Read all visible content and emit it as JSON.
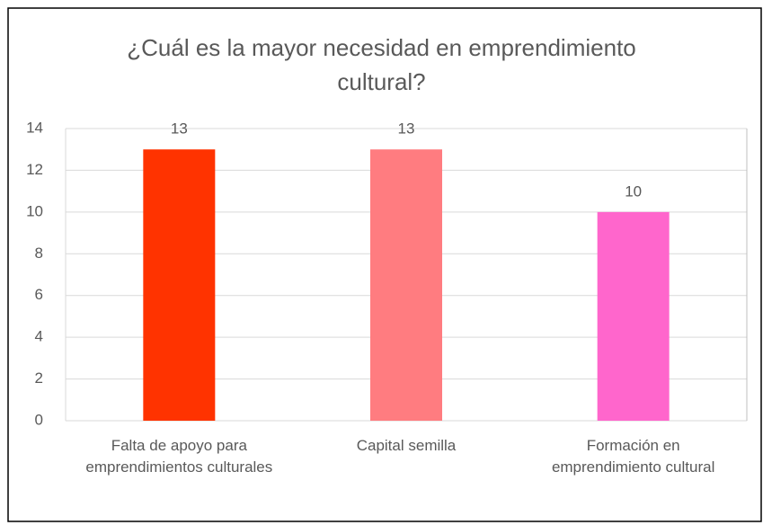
{
  "chart_data": {
    "type": "bar",
    "title": "¿Cuál es la mayor necesidad en emprendimiento cultural?",
    "categories": [
      "Falta de apoyo para emprendimientos culturales",
      "Capital semilla",
      "Formación en emprendimiento cultural"
    ],
    "values": [
      13,
      13,
      10
    ],
    "colors": [
      "#ff3300",
      "#ff7c80",
      "#ff66cc"
    ],
    "ylim": [
      0,
      14
    ],
    "yticks": [
      0,
      2,
      4,
      6,
      8,
      10,
      12,
      14
    ],
    "grid": true
  }
}
